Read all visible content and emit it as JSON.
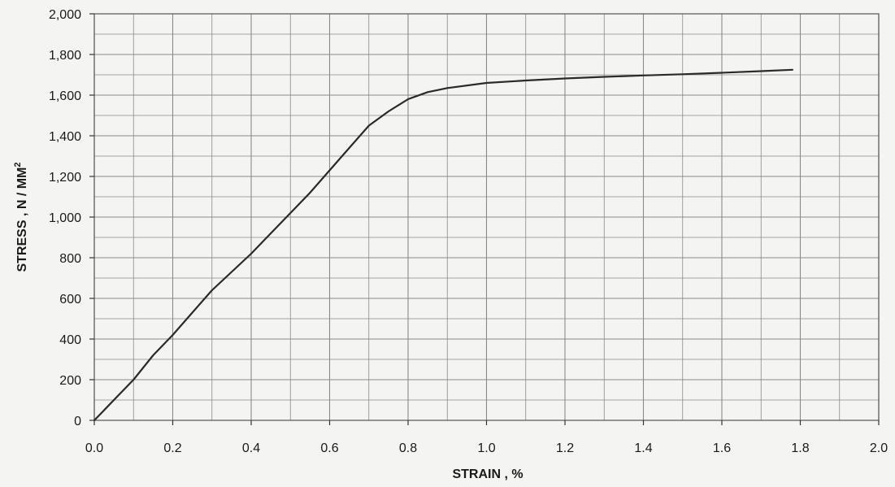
{
  "chart_data": {
    "type": "line",
    "title": "",
    "xlabel": "STRAIN , %",
    "ylabel": "STRESS , N / MM",
    "ylabel_superscript": "2",
    "xlim": [
      0,
      2.0
    ],
    "ylim": [
      0,
      2000
    ],
    "x_ticks": [
      "0.0",
      "0.2",
      "0.4",
      "0.6",
      "0.8",
      "1.0",
      "1.2",
      "1.4",
      "1.6",
      "1.8",
      "2.0"
    ],
    "y_ticks": [
      "0",
      "200",
      "400",
      "600",
      "800",
      "1,000",
      "1,200",
      "1,400",
      "1,600",
      "1,800",
      "2,000"
    ],
    "grid": true,
    "line_color": "#2a2a2a",
    "grid_color": "#8a8a8a",
    "series": [
      {
        "x": [
          0,
          0.02,
          0.06,
          0.1,
          0.15,
          0.2,
          0.25,
          0.3,
          0.35,
          0.4,
          0.45,
          0.5,
          0.55,
          0.6,
          0.65,
          0.7,
          0.75,
          0.8,
          0.85,
          0.9,
          1.0,
          1.1,
          1.2,
          1.3,
          1.4,
          1.5,
          1.6,
          1.7,
          1.78
        ],
        "y": [
          0,
          40,
          120,
          200,
          320,
          420,
          530,
          640,
          730,
          820,
          920,
          1020,
          1120,
          1230,
          1340,
          1450,
          1520,
          1580,
          1615,
          1635,
          1660,
          1672,
          1682,
          1690,
          1697,
          1703,
          1710,
          1718,
          1725
        ]
      }
    ]
  }
}
